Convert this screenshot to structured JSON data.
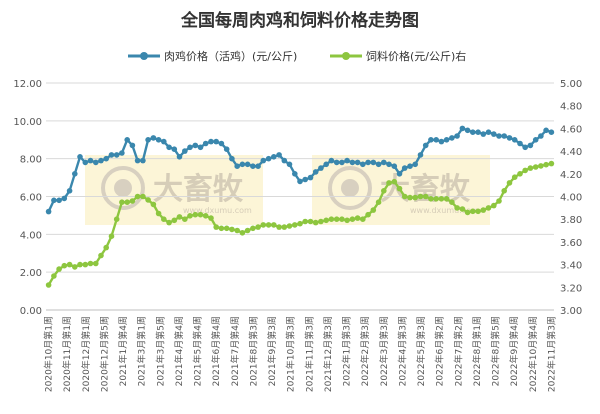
{
  "chart_data": {
    "type": "line",
    "title": "全国每周肉鸡和饲料价格走势图",
    "watermark": {
      "text": "大畜牧",
      "subtext": "www.dxumu.com"
    },
    "legend": {
      "placement": "top-center"
    },
    "y_left": {
      "min": 0,
      "max": 12,
      "step": 2,
      "decimals": 2
    },
    "y_right": {
      "min": 3.0,
      "max": 5.0,
      "step": 0.2,
      "decimals": 2
    },
    "grid": true,
    "x_tick_labels": [
      "2020年10月第1周",
      "2020年11月第1周",
      "2020年12月第1周",
      "2020年12月第5周",
      "2021年1月第4周",
      "2021年3月第1周",
      "2021年3月第5周",
      "2021年4月第4周",
      "2021年5月第4周",
      "2021年6月第4周",
      "2021年7月第4周",
      "2021年8月第3周",
      "2021年9月第3周",
      "2021年10月第3周",
      "2021年11月第3周",
      "2021年12月第3周",
      "2022年1月第3周",
      "2022年2月第3周",
      "2022年3月第3周",
      "2022年4月第3周",
      "2022年5月第3周",
      "2022年6月第2周",
      "2022年7月第2周",
      "2022年8月第1周",
      "2022年8月第5周",
      "2022年9月第4周",
      "2022年10月第4周",
      "2022年11月第3周"
    ],
    "series": [
      {
        "name": "肉鸡价格（活鸡）(元/公斤)",
        "axis": "left",
        "color": "#3a87ad",
        "values": [
          5.2,
          5.8,
          5.8,
          5.9,
          6.3,
          7.2,
          8.1,
          7.8,
          7.9,
          7.8,
          7.9,
          8.0,
          8.2,
          8.2,
          8.3,
          9.0,
          8.7,
          7.9,
          7.9,
          9.0,
          9.1,
          9.0,
          8.9,
          8.6,
          8.5,
          8.1,
          8.4,
          8.6,
          8.7,
          8.6,
          8.8,
          8.9,
          8.9,
          8.8,
          8.5,
          8.0,
          7.6,
          7.7,
          7.7,
          7.6,
          7.6,
          7.9,
          8.0,
          8.1,
          8.2,
          7.9,
          7.7,
          7.2,
          6.8,
          6.9,
          7.0,
          7.3,
          7.5,
          7.7,
          7.9,
          7.8,
          7.8,
          7.9,
          7.8,
          7.8,
          7.7,
          7.8,
          7.8,
          7.7,
          7.8,
          7.7,
          7.6,
          7.2,
          7.5,
          7.6,
          7.7,
          8.2,
          8.7,
          9.0,
          9.0,
          8.9,
          9.0,
          9.1,
          9.2,
          9.6,
          9.5,
          9.4,
          9.4,
          9.3,
          9.4,
          9.3,
          9.2,
          9.2,
          9.1,
          9.0,
          8.8,
          8.6,
          8.7,
          9.0,
          9.2,
          9.5,
          9.4
        ]
      },
      {
        "name": "饲料价格(元/公斤)右",
        "axis": "right",
        "color": "#8dc63f",
        "values": [
          3.22,
          3.3,
          3.36,
          3.39,
          3.4,
          3.38,
          3.4,
          3.4,
          3.41,
          3.41,
          3.48,
          3.55,
          3.65,
          3.8,
          3.95,
          3.95,
          3.96,
          4.0,
          4.0,
          3.97,
          3.93,
          3.85,
          3.8,
          3.77,
          3.79,
          3.82,
          3.8,
          3.83,
          3.84,
          3.84,
          3.83,
          3.81,
          3.73,
          3.72,
          3.72,
          3.71,
          3.7,
          3.68,
          3.7,
          3.72,
          3.73,
          3.75,
          3.75,
          3.75,
          3.73,
          3.73,
          3.74,
          3.75,
          3.76,
          3.78,
          3.78,
          3.77,
          3.78,
          3.79,
          3.8,
          3.8,
          3.8,
          3.79,
          3.8,
          3.81,
          3.8,
          3.84,
          3.88,
          3.95,
          4.05,
          4.12,
          4.13,
          4.07,
          4.0,
          3.99,
          3.99,
          4.0,
          4.0,
          3.98,
          3.98,
          3.98,
          3.98,
          3.95,
          3.9,
          3.89,
          3.86,
          3.87,
          3.87,
          3.88,
          3.9,
          3.92,
          3.96,
          4.05,
          4.12,
          4.17,
          4.2,
          4.23,
          4.25,
          4.26,
          4.27,
          4.28,
          4.29
        ]
      }
    ]
  }
}
